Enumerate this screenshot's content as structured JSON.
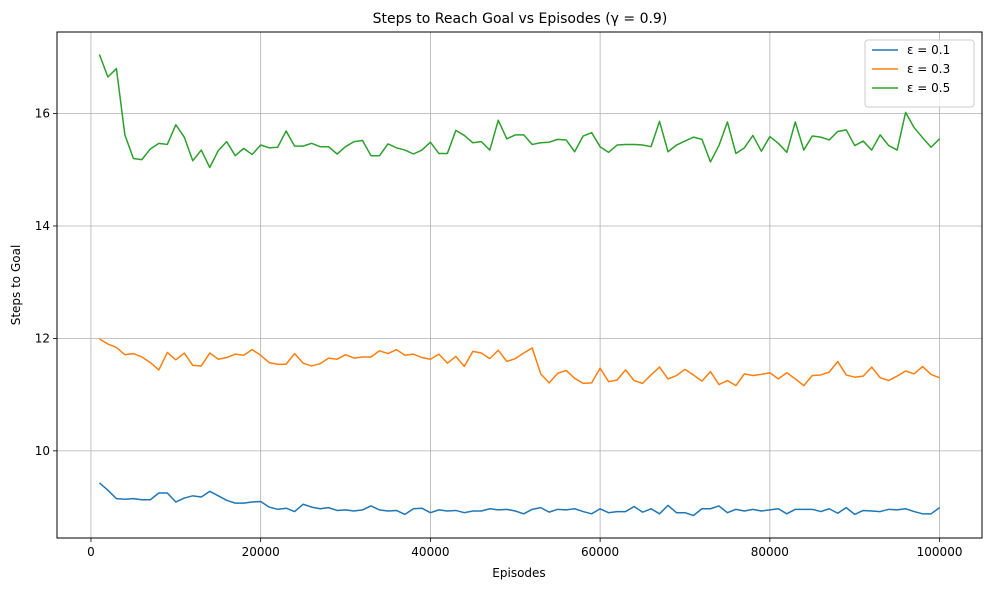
{
  "chart_data": {
    "type": "line",
    "title": "Steps to Reach Goal vs Episodes (γ = 0.9)",
    "xlabel": "Episodes",
    "ylabel": "Steps to Goal",
    "xlim": [
      -4000,
      105000
    ],
    "ylim": [
      8.45,
      17.45
    ],
    "xticks": [
      0,
      20000,
      40000,
      60000,
      80000,
      100000
    ],
    "xtick_labels": [
      "0",
      "20000",
      "40000",
      "60000",
      "80000",
      "100000"
    ],
    "yticks": [
      10,
      12,
      14,
      16
    ],
    "ytick_labels": [
      "10",
      "12",
      "14",
      "16"
    ],
    "grid": true,
    "legend_position": "top-right",
    "x": [
      1000,
      2000,
      3000,
      4000,
      5000,
      6000,
      7000,
      8000,
      9000,
      10000,
      11000,
      12000,
      13000,
      14000,
      15000,
      16000,
      17000,
      18000,
      19000,
      20000,
      21000,
      22000,
      23000,
      24000,
      25000,
      26000,
      27000,
      28000,
      29000,
      30000,
      31000,
      32000,
      33000,
      34000,
      35000,
      36000,
      37000,
      38000,
      39000,
      40000,
      41000,
      42000,
      43000,
      44000,
      45000,
      46000,
      47000,
      48000,
      49000,
      50000,
      51000,
      52000,
      53000,
      54000,
      55000,
      56000,
      57000,
      58000,
      59000,
      60000,
      61000,
      62000,
      63000,
      64000,
      65000,
      66000,
      67000,
      68000,
      69000,
      70000,
      71000,
      72000,
      73000,
      74000,
      75000,
      76000,
      77000,
      78000,
      79000,
      80000,
      81000,
      82000,
      83000,
      84000,
      85000,
      86000,
      87000,
      88000,
      89000,
      90000,
      91000,
      92000,
      93000,
      94000,
      95000,
      96000,
      97000,
      98000,
      99000,
      100000
    ],
    "series": [
      {
        "name": "ε = 0.1",
        "color": "#1f77b4",
        "values": [
          9.43,
          9.3,
          9.15,
          9.14,
          9.15,
          9.13,
          9.13,
          9.25,
          9.25,
          9.09,
          9.16,
          9.2,
          9.18,
          9.28,
          9.2,
          9.12,
          9.07,
          9.07,
          9.09,
          9.1,
          9.0,
          8.96,
          8.98,
          8.92,
          9.05,
          9.0,
          8.97,
          8.99,
          8.94,
          8.95,
          8.93,
          8.95,
          9.02,
          8.95,
          8.93,
          8.94,
          8.87,
          8.97,
          8.98,
          8.9,
          8.95,
          8.93,
          8.94,
          8.9,
          8.93,
          8.93,
          8.97,
          8.95,
          8.96,
          8.93,
          8.88,
          8.96,
          8.99,
          8.91,
          8.96,
          8.95,
          8.97,
          8.92,
          8.88,
          8.97,
          8.9,
          8.92,
          8.92,
          9.01,
          8.91,
          8.97,
          8.88,
          9.03,
          8.9,
          8.9,
          8.85,
          8.97,
          8.97,
          9.02,
          8.9,
          8.96,
          8.93,
          8.96,
          8.93,
          8.95,
          8.97,
          8.88,
          8.96,
          8.96,
          8.96,
          8.92,
          8.97,
          8.89,
          8.99,
          8.87,
          8.94,
          8.93,
          8.92,
          8.96,
          8.95,
          8.97,
          8.92,
          8.88,
          8.88,
          8.99
        ]
      },
      {
        "name": "ε = 0.3",
        "color": "#ff7f0e",
        "values": [
          11.99,
          11.9,
          11.84,
          11.71,
          11.73,
          11.67,
          11.57,
          11.44,
          11.75,
          11.62,
          11.74,
          11.52,
          11.51,
          11.74,
          11.63,
          11.66,
          11.72,
          11.7,
          11.8,
          11.7,
          11.57,
          11.54,
          11.54,
          11.73,
          11.56,
          11.51,
          11.55,
          11.65,
          11.63,
          11.71,
          11.65,
          11.67,
          11.67,
          11.78,
          11.73,
          11.8,
          11.7,
          11.72,
          11.66,
          11.63,
          11.72,
          11.56,
          11.68,
          11.5,
          11.77,
          11.74,
          11.64,
          11.79,
          11.59,
          11.64,
          11.74,
          11.83,
          11.37,
          11.21,
          11.38,
          11.43,
          11.29,
          11.2,
          11.21,
          11.47,
          11.23,
          11.26,
          11.44,
          11.25,
          11.2,
          11.35,
          11.49,
          11.28,
          11.34,
          11.45,
          11.35,
          11.24,
          11.41,
          11.18,
          11.25,
          11.16,
          11.37,
          11.34,
          11.36,
          11.39,
          11.28,
          11.39,
          11.28,
          11.16,
          11.34,
          11.35,
          11.4,
          11.59,
          11.35,
          11.31,
          11.33,
          11.49,
          11.3,
          11.25,
          11.33,
          11.42,
          11.37,
          11.5,
          11.36,
          11.3
        ]
      },
      {
        "name": "ε = 0.5",
        "color": "#2ca02c",
        "values": [
          17.05,
          16.65,
          16.8,
          15.62,
          15.2,
          15.18,
          15.37,
          15.47,
          15.45,
          15.8,
          15.58,
          15.16,
          15.35,
          15.04,
          15.34,
          15.5,
          15.25,
          15.38,
          15.27,
          15.44,
          15.39,
          15.4,
          15.69,
          15.42,
          15.42,
          15.47,
          15.41,
          15.41,
          15.28,
          15.41,
          15.5,
          15.52,
          15.25,
          15.25,
          15.46,
          15.39,
          15.35,
          15.28,
          15.35,
          15.49,
          15.29,
          15.29,
          15.7,
          15.61,
          15.48,
          15.5,
          15.35,
          15.88,
          15.55,
          15.62,
          15.62,
          15.45,
          15.48,
          15.49,
          15.54,
          15.53,
          15.32,
          15.6,
          15.66,
          15.41,
          15.31,
          15.44,
          15.45,
          15.45,
          15.44,
          15.41,
          15.86,
          15.32,
          15.44,
          15.51,
          15.58,
          15.54,
          15.14,
          15.43,
          15.85,
          15.29,
          15.39,
          15.61,
          15.33,
          15.59,
          15.47,
          15.31,
          15.85,
          15.35,
          15.6,
          15.58,
          15.53,
          15.68,
          15.71,
          15.43,
          15.51,
          15.35,
          15.62,
          15.43,
          15.35,
          16.02,
          15.75,
          15.57,
          15.4,
          15.55
        ]
      }
    ]
  }
}
